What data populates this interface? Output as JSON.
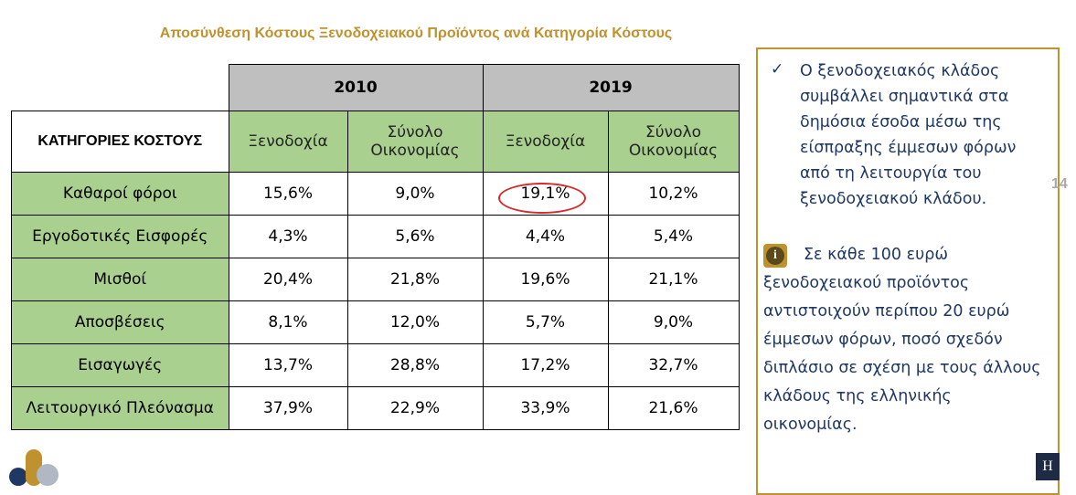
{
  "header": {
    "title": "Αποσύνθεση Κόστους Ξενοδοχειακού Προϊόντος ανά Κατηγορία Κόστους"
  },
  "table": {
    "years": [
      "2010",
      "2019"
    ],
    "category_header": "ΚΑΤΗΓΟΡΙΕΣ ΚΟΣΤΟΥΣ",
    "subheaders": [
      "Ξενοδοχία",
      "Σύνολο Οικονομίας",
      "Ξενοδοχία",
      "Σύνολο Οικονομίας"
    ],
    "rows": [
      [
        "Καθαροί φόροι",
        "15,6%",
        "9,0%",
        "19,1%",
        "10,2%"
      ],
      [
        "Εργοδοτικές Εισφορές",
        "4,3%",
        "5,6%",
        "4,4%",
        "5,4%"
      ],
      [
        "Μισθοί",
        "20,4%",
        "21,8%",
        "19,6%",
        "21,1%"
      ],
      [
        "Αποσβέσεις",
        "8,1%",
        "12,0%",
        "5,7%",
        "9,0%"
      ],
      [
        "Εισαγωγές",
        "13,7%",
        "28,8%",
        "17,2%",
        "32,7%"
      ],
      [
        "Λειτουργικό Πλεόνασμα",
        "37,9%",
        "22,9%",
        "33,9%",
        "21,6%"
      ]
    ]
  },
  "sidebar": {
    "bullet": "Ο ξενοδοχειακός κλάδος συμβάλλει σημαντικά στα δημόσια έσοδα μέσω της είσπραξης έμμεσων φόρων από τη λειτουργία του ξενοδοχειακού κλάδου.",
    "note": "Σε κάθε 100 ευρώ ξενοδοχειακού προϊόντος αντιστοιχούν περίπου 20 ευρώ έμμεσων φόρων, ποσό σχεδόν διπλάσιο σε σχέση με τους άλλους κλάδους της ελληνικής οικονομίας."
  },
  "footer": {
    "page_number": "14",
    "logo": "H"
  }
}
